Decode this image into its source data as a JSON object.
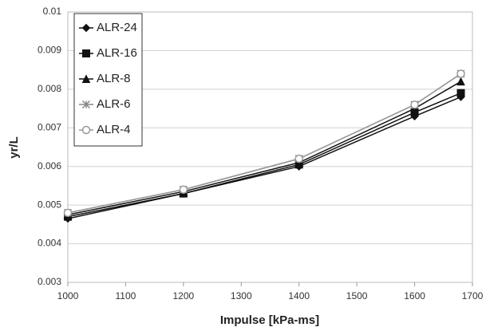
{
  "chart_data": {
    "type": "line",
    "x_label": "Impulse [kPa-ms]",
    "y_label": "yr/L",
    "x": [
      1000,
      1200,
      1400,
      1600,
      1680
    ],
    "series": [
      {
        "name": "ALR-24",
        "color": "#111111",
        "marker": "diamond",
        "values": [
          0.00465,
          0.0053,
          0.006,
          0.0073,
          0.0078
        ]
      },
      {
        "name": "ALR-16",
        "color": "#111111",
        "marker": "square",
        "values": [
          0.0047,
          0.0053,
          0.00605,
          0.0074,
          0.0079
        ]
      },
      {
        "name": "ALR-8",
        "color": "#111111",
        "marker": "triangle",
        "values": [
          0.00475,
          0.00535,
          0.0061,
          0.0075,
          0.0082
        ]
      },
      {
        "name": "ALR-6",
        "color": "#888888",
        "marker": "star",
        "values": [
          0.0048,
          0.0054,
          0.0062,
          0.0076,
          0.0084
        ]
      },
      {
        "name": "ALR-4",
        "color": "#999999",
        "marker": "circle",
        "values": [
          0.0048,
          0.0054,
          0.0062,
          0.0076,
          0.0084
        ]
      }
    ],
    "xlim": [
      1000,
      1700
    ],
    "xticks": [
      1000,
      1100,
      1200,
      1300,
      1400,
      1500,
      1600,
      1700
    ],
    "ylim": [
      0.003,
      0.01
    ],
    "yticks": [
      0.003,
      0.004,
      0.005,
      0.006,
      0.007,
      0.008,
      0.009,
      0.01
    ],
    "grid": true,
    "legend": "top-left"
  }
}
